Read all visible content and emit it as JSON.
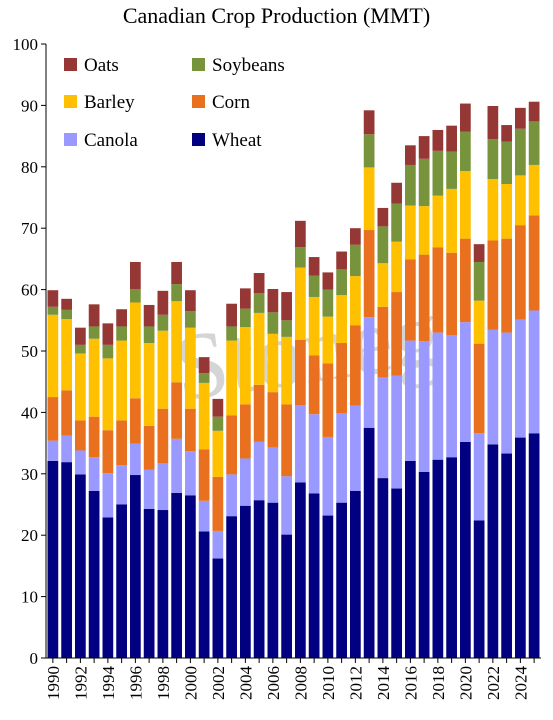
{
  "chart_data": {
    "type": "bar",
    "stacked": true,
    "title": "Canadian Crop Production (MMT)",
    "xlabel": "",
    "ylabel": "",
    "ylim": [
      0,
      100
    ],
    "yticks": [
      0,
      10,
      20,
      30,
      40,
      50,
      60,
      70,
      80,
      90,
      100
    ],
    "categories": [
      "1990",
      "1991",
      "1992",
      "1993",
      "1994",
      "1995",
      "1996",
      "1997",
      "1998",
      "1999",
      "2000",
      "2001",
      "2002",
      "2003",
      "2004",
      "2005",
      "2006",
      "2007",
      "2008",
      "2009",
      "2010",
      "2011",
      "2012",
      "2013",
      "2014",
      "2015",
      "2016",
      "2017",
      "2018",
      "2019",
      "2020",
      "2021",
      "2022",
      "2023",
      "2024",
      "2025"
    ],
    "xtick_labels": [
      "1990",
      "1992",
      "1994",
      "1996",
      "1998",
      "2000",
      "2002",
      "2004",
      "2006",
      "2008",
      "2010",
      "2012",
      "2014",
      "2016",
      "2018",
      "2020",
      "2022",
      "2024"
    ],
    "legend": {
      "position": "top-left",
      "columns": 2,
      "order": [
        "Oats",
        "Soybeans",
        "Barley",
        "Corn",
        "Canola",
        "Wheat"
      ]
    },
    "grid": false,
    "watermark": "Stoneg",
    "series": [
      {
        "name": "Wheat",
        "color": "#000080",
        "values": [
          32.1,
          31.9,
          29.9,
          27.2,
          22.9,
          25.0,
          29.8,
          24.3,
          24.1,
          26.9,
          26.5,
          20.6,
          16.2,
          23.1,
          24.8,
          25.7,
          25.3,
          20.1,
          28.6,
          26.8,
          23.2,
          25.3,
          27.2,
          37.5,
          29.3,
          27.6,
          32.1,
          30.3,
          32.3,
          32.7,
          35.2,
          22.4,
          34.8,
          33.3,
          35.9,
          36.6
        ]
      },
      {
        "name": "Canola",
        "color": "#9999FF",
        "values": [
          3.3,
          4.3,
          3.9,
          5.5,
          7.2,
          6.4,
          5.1,
          6.4,
          7.6,
          8.8,
          7.2,
          5.0,
          4.5,
          6.8,
          7.7,
          9.5,
          9.0,
          9.5,
          12.6,
          12.9,
          12.8,
          14.6,
          13.9,
          18.0,
          16.4,
          18.4,
          19.6,
          21.3,
          20.7,
          19.9,
          19.5,
          14.2,
          18.7,
          19.7,
          19.2,
          20.0
        ]
      },
      {
        "name": "Corn",
        "color": "#E8701F",
        "values": [
          7.1,
          7.4,
          4.9,
          6.6,
          7.0,
          7.3,
          7.4,
          7.1,
          8.9,
          9.2,
          6.9,
          8.4,
          8.8,
          9.6,
          8.8,
          9.3,
          9.0,
          11.7,
          10.6,
          9.6,
          12.0,
          11.4,
          13.1,
          14.2,
          11.5,
          13.6,
          13.2,
          14.1,
          13.9,
          13.4,
          13.6,
          14.6,
          14.5,
          15.3,
          15.4,
          15.5
        ]
      },
      {
        "name": "Barley",
        "color": "#FFC000",
        "values": [
          13.4,
          11.6,
          10.9,
          12.7,
          11.7,
          13.0,
          15.6,
          13.5,
          12.7,
          13.2,
          13.2,
          10.8,
          7.5,
          12.2,
          12.6,
          11.7,
          9.5,
          11.0,
          11.8,
          9.5,
          7.6,
          7.8,
          8.0,
          10.2,
          7.1,
          8.2,
          8.8,
          7.9,
          8.4,
          10.4,
          11.0,
          7.0,
          10.0,
          8.9,
          8.1,
          8.2
        ]
      },
      {
        "name": "Soybeans",
        "color": "#77933C",
        "values": [
          1.3,
          1.5,
          1.4,
          2.0,
          2.2,
          2.3,
          2.2,
          2.7,
          2.6,
          2.8,
          2.7,
          1.6,
          2.3,
          2.3,
          3.0,
          3.2,
          3.5,
          2.7,
          3.3,
          3.5,
          4.4,
          4.2,
          5.1,
          5.4,
          6.0,
          6.2,
          6.6,
          7.7,
          7.3,
          6.1,
          6.4,
          6.3,
          6.5,
          6.9,
          7.6,
          7.1
        ]
      },
      {
        "name": "Oats",
        "color": "#953735",
        "values": [
          2.7,
          1.8,
          2.8,
          3.6,
          3.5,
          2.8,
          4.4,
          3.5,
          3.9,
          3.6,
          3.4,
          2.6,
          2.9,
          3.7,
          3.3,
          3.3,
          3.8,
          4.6,
          4.3,
          3.0,
          2.8,
          2.9,
          2.7,
          3.9,
          3.0,
          3.4,
          3.2,
          3.7,
          3.4,
          4.2,
          4.6,
          2.9,
          5.4,
          2.7,
          3.4,
          3.2
        ]
      }
    ]
  }
}
